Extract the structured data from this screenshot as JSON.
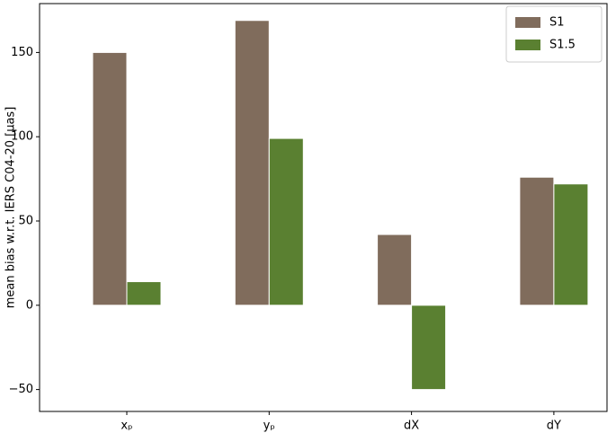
{
  "chart_data": {
    "type": "bar",
    "ylabel": "mean bias w.r.t. IERS C04-20 [μas]",
    "categories": [
      "xₚ",
      "yₚ",
      "dX",
      "dY"
    ],
    "series": [
      {
        "name": "S1",
        "color": "#806c5c",
        "values": [
          150,
          169,
          42,
          76
        ]
      },
      {
        "name": "S1.5",
        "color": "#5a8031",
        "values": [
          14,
          99,
          -50,
          72
        ]
      }
    ],
    "ylim": [
      -63,
      179
    ],
    "yticks": [
      {
        "value": -50,
        "label": "−50"
      },
      0,
      50,
      100,
      150
    ],
    "legend": "upper right"
  }
}
